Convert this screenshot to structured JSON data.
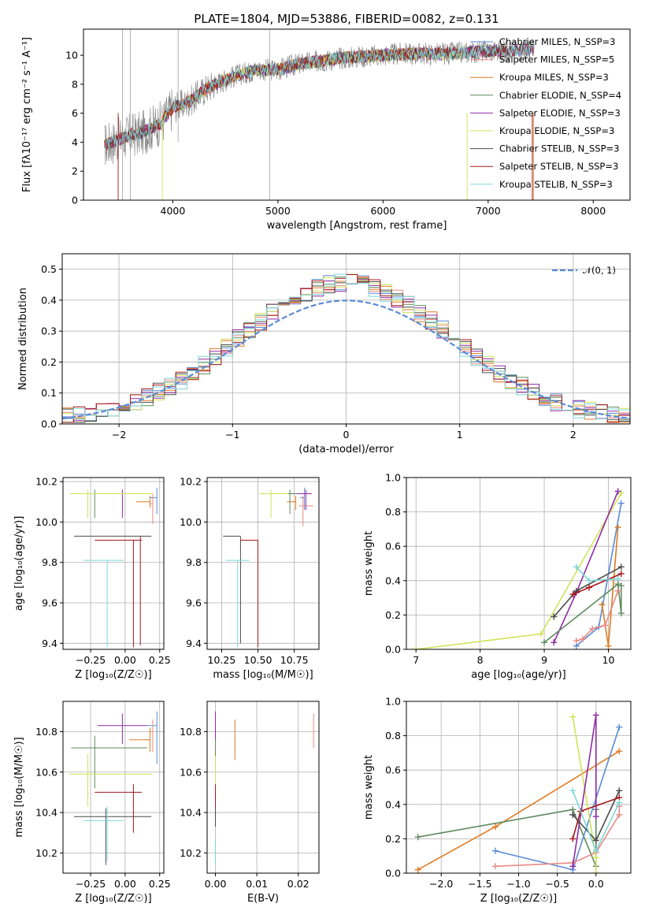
{
  "title": "PLATE=1804, MJD=53886, FIBERID=0082, z=0.131",
  "colors": {
    "chabrier_miles": "#5b8bd6",
    "salpeter_miles": "#e98a84",
    "kroupa_miles": "#e07b22",
    "chabrier_elodie": "#5f8a5f",
    "salpeter_elodie": "#8f2aa5",
    "kroupa_elodie": "#d1e35a",
    "chabrier_stelib": "#4b4b4b",
    "salpeter_stelib": "#a5181b",
    "kroupa_stelib": "#7fd6d8",
    "gaussian": "#5b8bd6"
  },
  "chart_data": [
    {
      "id": "spectrum",
      "type": "line",
      "xlabel": "wavelength [Angstrom, rest frame]",
      "ylabel": "Flux [fλ10⁻¹⁷ erg cm⁻² s⁻¹ A⁻¹]",
      "xlim": [
        3150,
        8350
      ],
      "ylim": [
        0,
        11.8
      ],
      "xticks": [
        4000,
        5000,
        6000,
        7000,
        8000
      ],
      "yticks": [
        0,
        2,
        4,
        6,
        8,
        10
      ],
      "grid": false,
      "legend_position": "top-right",
      "legend": [
        "Chabrier MILES, N_SSP=3",
        "Salpeter MILES, N_SSP=5",
        "Kroupa MILES, N_SSP=3",
        "Chabrier ELODIE, N_SSP=4",
        "Salpeter ELODIE, N_SSP=3",
        "Kroupa ELODIE, N_SSP=3",
        "Chabrier STELIB, N_SSP=3",
        "Salpeter STELIB, N_SSP=3",
        "Kroupa STELIB, N_SSP=3"
      ],
      "data_continuum": {
        "x": [
          3350,
          3500,
          3600,
          3700,
          3800,
          3900,
          4000,
          4100,
          4200,
          4300,
          4400,
          4600,
          4800,
          5000,
          5200,
          5400,
          5600,
          5800,
          6000,
          6200,
          6400,
          6600,
          6800,
          7000,
          7200,
          7400,
          7600,
          7800,
          8000,
          8200
        ],
        "y": [
          3.8,
          4.2,
          4.5,
          4.6,
          5.0,
          5.4,
          6.4,
          6.6,
          7.0,
          7.6,
          8.0,
          8.6,
          9.0,
          9.0,
          9.4,
          9.6,
          9.8,
          9.9,
          10.0,
          10.1,
          10.1,
          10.1,
          10.2,
          10.3,
          10.3,
          10.4,
          10.3,
          10.3,
          10.3,
          10.3
        ]
      }
    },
    {
      "id": "residuals",
      "type": "histogram",
      "xlabel": "(data-model)/error",
      "ylabel": "Normed distribution",
      "xlim": [
        -2.5,
        2.5
      ],
      "ylim": [
        0,
        0.55
      ],
      "xticks": [
        -2,
        -1,
        0,
        1,
        2
      ],
      "yticks": [
        0.0,
        0.1,
        0.2,
        0.3,
        0.4,
        0.5
      ],
      "grid": true,
      "legend_position": "top-right",
      "legend": [
        "𝒩(0, 1)"
      ],
      "bin_width": 0.1,
      "bin_start": -2.5
    },
    {
      "id": "age_vs_Z",
      "type": "errorbar",
      "xlabel": "Z [log₁₀(Z/Z☉)]",
      "ylabel": "age  [log₁₀(age/yr)]",
      "xlim": [
        -0.45,
        0.28
      ],
      "ylim": [
        9.37,
        10.22
      ],
      "xticks": [
        -0.25,
        0.0,
        0.25
      ],
      "yticks": [
        9.4,
        9.6,
        9.8,
        10.0,
        10.2
      ],
      "grid": true,
      "points": [
        {
          "model": "chabrier_miles",
          "x": 0.23,
          "y": 10.12,
          "xerr": [
            0.05,
            0.0
          ],
          "yerr": [
            0.08,
            0.05
          ]
        },
        {
          "model": "salpeter_miles",
          "x": 0.2,
          "y": 10.09,
          "xerr": [
            0.02,
            0.0
          ],
          "yerr": [
            0.1,
            0.05
          ]
        },
        {
          "model": "kroupa_miles",
          "x": 0.18,
          "y": 10.1,
          "xerr": [
            0.1,
            0.0
          ],
          "yerr": [
            0.03,
            0.03
          ]
        },
        {
          "model": "chabrier_elodie",
          "x": -0.22,
          "y": 10.14,
          "xerr": [
            0.17,
            0.1
          ],
          "yerr": [
            0.12,
            0.02
          ]
        },
        {
          "model": "salpeter_elodie",
          "x": -0.02,
          "y": 10.14,
          "xerr": [
            0.18,
            0.18
          ],
          "yerr": [
            0.12,
            0.02
          ]
        },
        {
          "model": "kroupa_elodie",
          "x": -0.27,
          "y": 10.14,
          "xerr": [
            0.13,
            0.47
          ],
          "yerr": [
            0.12,
            0.02
          ]
        },
        {
          "model": "chabrier_stelib",
          "x": -0.14,
          "y": 9.93,
          "xerr": [
            0.23,
            0.33
          ],
          "yerr": [
            0.0,
            0.0
          ]
        },
        {
          "model": "salpeter_stelib",
          "x": 0.06,
          "y": 9.91,
          "xerr": [
            0.28,
            0.06
          ],
          "yerr": [
            0.53,
            0.0
          ]
        },
        {
          "model": "salpeter_stelib_v",
          "x": 0.11,
          "y": 9.93,
          "xerr": [
            0.0,
            0.0
          ],
          "yerr": [
            0.54,
            0.0
          ]
        },
        {
          "model": "kroupa_stelib",
          "x": -0.13,
          "y": 9.81,
          "xerr": [
            0.17,
            0.12
          ],
          "yerr": [
            0.43,
            0.0
          ]
        }
      ]
    },
    {
      "id": "age_vs_mass",
      "type": "errorbar",
      "xlabel": "mass [log₁₀(M/M☉)]",
      "ylabel": "",
      "xlim": [
        10.15,
        10.92
      ],
      "ylim": [
        9.37,
        10.22
      ],
      "xticks": [
        10.25,
        10.5,
        10.75
      ],
      "yticks": [
        9.4,
        9.6,
        9.8,
        10.0,
        10.2
      ],
      "grid": true,
      "points": [
        {
          "model": "chabrier_miles",
          "x": 10.82,
          "y": 10.12,
          "xerr": [
            0.03,
            0.0
          ],
          "yerr": [
            0.06,
            0.05
          ]
        },
        {
          "model": "salpeter_miles",
          "x": 10.81,
          "y": 10.08,
          "xerr": [
            0.03,
            0.07
          ],
          "yerr": [
            0.1,
            0.05
          ]
        },
        {
          "model": "kroupa_miles",
          "x": 10.76,
          "y": 10.1,
          "xerr": [
            0.06,
            0.0
          ],
          "yerr": [
            0.04,
            0.03
          ]
        },
        {
          "model": "chabrier_elodie",
          "x": 10.72,
          "y": 10.14,
          "xerr": [
            0.08,
            0.06
          ],
          "yerr": [
            0.1,
            0.02
          ]
        },
        {
          "model": "salpeter_elodie",
          "x": 10.83,
          "y": 10.14,
          "xerr": [
            0.06,
            0.04
          ],
          "yerr": [
            0.08,
            0.02
          ]
        },
        {
          "model": "kroupa_elodie",
          "x": 10.59,
          "y": 10.14,
          "xerr": [
            0.08,
            0.12
          ],
          "yerr": [
            0.12,
            0.02
          ]
        },
        {
          "model": "chabrier_stelib",
          "x": 10.38,
          "y": 9.93,
          "xerr": [
            0.12,
            0.0
          ],
          "yerr": [
            0.53,
            0.0
          ]
        },
        {
          "model": "salpeter_stelib",
          "x": 10.5,
          "y": 9.91,
          "xerr": [
            0.12,
            0.0
          ],
          "yerr": [
            0.53,
            0.0
          ]
        },
        {
          "model": "kroupa_stelib",
          "x": 10.36,
          "y": 9.81,
          "xerr": [
            0.08,
            0.08
          ],
          "yerr": [
            0.43,
            0.0
          ]
        }
      ]
    },
    {
      "id": "weight_vs_age",
      "type": "line",
      "xlabel": "age  [log₁₀(age/yr)]",
      "ylabel": "mass weight",
      "xlim": [
        6.85,
        10.35
      ],
      "ylim": [
        0,
        1
      ],
      "xticks": [
        7,
        8,
        9,
        10
      ],
      "yticks": [
        0.0,
        0.2,
        0.4,
        0.6,
        0.8,
        1.0
      ],
      "grid": true,
      "series": [
        {
          "model": "kroupa_elodie",
          "x": [
            7.0,
            8.95,
            10.2
          ],
          "y": [
            0.0,
            0.09,
            0.91
          ]
        },
        {
          "model": "salpeter_elodie",
          "x": [
            9.15,
            9.5,
            10.15
          ],
          "y": [
            0.04,
            0.33,
            0.92
          ]
        },
        {
          "model": "chabrier_miles",
          "x": [
            9.5,
            9.85,
            10.2
          ],
          "y": [
            0.02,
            0.13,
            0.85
          ]
        },
        {
          "model": "kroupa_miles",
          "x": [
            9.9,
            10.0,
            10.15
          ],
          "y": [
            0.26,
            0.02,
            0.71
          ]
        },
        {
          "model": "chabrier_stelib",
          "x": [
            9.15,
            9.5,
            10.2
          ],
          "y": [
            0.19,
            0.34,
            0.48
          ]
        },
        {
          "model": "salpeter_stelib",
          "x": [
            9.45,
            9.7,
            10.2
          ],
          "y": [
            0.32,
            0.36,
            0.44
          ]
        },
        {
          "model": "kroupa_stelib",
          "x": [
            9.5,
            9.7,
            10.15
          ],
          "y": [
            0.48,
            0.4,
            0.41
          ]
        },
        {
          "model": "chabrier_elodie",
          "x": [
            9.0,
            10.15,
            10.2,
            10.2
          ],
          "y": [
            0.04,
            0.38,
            0.21,
            0.37
          ]
        },
        {
          "model": "salpeter_miles",
          "x": [
            9.5,
            9.6,
            9.75,
            9.95,
            10.15
          ],
          "y": [
            0.05,
            0.06,
            0.12,
            0.14,
            0.34
          ]
        }
      ]
    },
    {
      "id": "mass_vs_Z",
      "type": "errorbar",
      "xlabel": "Z [log₁₀(Z/Z☉)]",
      "ylabel": "mass [log₁₀(M/M☉)]",
      "xlim": [
        -0.45,
        0.28
      ],
      "ylim": [
        10.1,
        10.95
      ],
      "xticks": [
        -0.25,
        0.0,
        0.25
      ],
      "yticks": [
        10.2,
        10.4,
        10.6,
        10.8
      ],
      "grid": true,
      "points": [
        {
          "model": "chabrier_miles",
          "x": 0.23,
          "y": 10.83,
          "xerr": [
            0.07,
            0.0
          ],
          "yerr": [
            0.19,
            0.07
          ]
        },
        {
          "model": "salpeter_miles",
          "x": 0.2,
          "y": 10.8,
          "xerr": [
            0.02,
            0.0
          ],
          "yerr": [
            0.1,
            0.06
          ]
        },
        {
          "model": "kroupa_miles",
          "x": 0.18,
          "y": 10.76,
          "xerr": [
            0.15,
            0.0
          ],
          "yerr": [
            0.06,
            0.06
          ]
        },
        {
          "model": "chabrier_elodie",
          "x": -0.22,
          "y": 10.72,
          "xerr": [
            0.17,
            0.38
          ],
          "yerr": [
            0.2,
            0.06
          ]
        },
        {
          "model": "salpeter_elodie",
          "x": -0.02,
          "y": 10.83,
          "xerr": [
            0.18,
            0.18
          ],
          "yerr": [
            0.09,
            0.06
          ]
        },
        {
          "model": "kroupa_elodie",
          "x": -0.27,
          "y": 10.59,
          "xerr": [
            0.13,
            0.47
          ],
          "yerr": [
            0.16,
            0.1
          ]
        },
        {
          "model": "chabrier_stelib",
          "x": -0.14,
          "y": 10.38,
          "xerr": [
            0.23,
            0.33
          ],
          "yerr": [
            0.24,
            0.04
          ]
        },
        {
          "model": "salpeter_stelib",
          "x": 0.06,
          "y": 10.5,
          "xerr": [
            0.28,
            0.06
          ],
          "yerr": [
            0.2,
            0.04
          ]
        },
        {
          "model": "kroupa_stelib",
          "x": -0.13,
          "y": 10.36,
          "xerr": [
            0.17,
            0.12
          ],
          "yerr": [
            0.2,
            0.07
          ]
        }
      ]
    },
    {
      "id": "mass_vs_ebv",
      "type": "errorbar",
      "xlabel": "E(B-V)",
      "ylabel": "",
      "xlim": [
        -0.002,
        0.025
      ],
      "ylim": [
        10.1,
        10.95
      ],
      "xticks": [
        0.0,
        0.01,
        0.02
      ],
      "yticks": [
        10.2,
        10.4,
        10.6,
        10.8
      ],
      "grid": true,
      "points": [
        {
          "model": "salpeter_miles",
          "x": 0.0237,
          "y": 10.81,
          "xerr": [
            0,
            0
          ],
          "yerr": [
            0.09,
            0.08
          ]
        },
        {
          "model": "kroupa_miles",
          "x": 0.0047,
          "y": 10.76,
          "xerr": [
            0,
            0
          ],
          "yerr": [
            0.1,
            0.1
          ]
        },
        {
          "model": "salpeter_elodie",
          "x": 0.0,
          "y": 10.82,
          "xerr": [
            0,
            0
          ],
          "yerr": [
            0.08,
            0.08
          ]
        },
        {
          "model": "kroupa_elodie",
          "x": 0.0,
          "y": 10.6,
          "xerr": [
            0,
            0
          ],
          "yerr": [
            0.15,
            0.15
          ]
        },
        {
          "model": "chabrier_elodie",
          "x": 0.0,
          "y": 10.72,
          "xerr": [
            0,
            0
          ],
          "yerr": [
            0.04,
            0.04
          ]
        },
        {
          "model": "salpeter_stelib",
          "x": 0.0,
          "y": 10.48,
          "xerr": [
            0,
            0
          ],
          "yerr": [
            0.06,
            0.06
          ]
        },
        {
          "model": "chabrier_stelib",
          "x": 0.0,
          "y": 10.38,
          "xerr": [
            0,
            0
          ],
          "yerr": [
            0.05,
            0.05
          ]
        },
        {
          "model": "kroupa_stelib",
          "x": 0.0,
          "y": 10.2,
          "xerr": [
            0,
            0
          ],
          "yerr": [
            0.07,
            0.07
          ]
        }
      ]
    },
    {
      "id": "weight_vs_Z",
      "type": "line",
      "xlabel": "Z [log₁₀(Z/Z☉)]",
      "ylabel": "mass weight",
      "xlim": [
        -2.45,
        0.45
      ],
      "ylim": [
        0,
        1
      ],
      "xticks": [
        -2.0,
        -1.5,
        -1.0,
        -0.5,
        0.0
      ],
      "yticks": [
        0.0,
        0.2,
        0.4,
        0.6,
        0.8,
        1.0
      ],
      "grid": true,
      "series": [
        {
          "model": "kroupa_miles",
          "x": [
            -2.3,
            -1.3,
            0.3
          ],
          "y": [
            0.02,
            0.27,
            0.71
          ]
        },
        {
          "model": "chabrier_elodie",
          "x": [
            -2.3,
            -0.3,
            0.0,
            0.0
          ],
          "y": [
            0.21,
            0.37,
            0.04,
            0.37
          ]
        },
        {
          "model": "chabrier_miles",
          "x": [
            -1.3,
            -0.3,
            0.3
          ],
          "y": [
            0.13,
            0.02,
            0.85
          ]
        },
        {
          "model": "salpeter_miles",
          "x": [
            -1.3,
            -0.3,
            0.0,
            0.3,
            0.3
          ],
          "y": [
            0.04,
            0.06,
            0.12,
            0.34,
            0.39
          ]
        },
        {
          "model": "kroupa_elodie",
          "x": [
            -0.3,
            0.0,
            0.0
          ],
          "y": [
            0.91,
            0.09,
            0.0
          ]
        },
        {
          "model": "salpeter_elodie",
          "x": [
            -0.3,
            0.0,
            0.0
          ],
          "y": [
            0.04,
            0.92,
            0.33
          ]
        },
        {
          "model": "chabrier_stelib",
          "x": [
            -0.3,
            0.0,
            0.3
          ],
          "y": [
            0.34,
            0.19,
            0.48
          ]
        },
        {
          "model": "salpeter_stelib",
          "x": [
            -0.3,
            -0.2,
            0.3
          ],
          "y": [
            0.2,
            0.36,
            0.44
          ]
        },
        {
          "model": "kroupa_stelib",
          "x": [
            -0.3,
            0.0,
            0.3
          ],
          "y": [
            0.48,
            0.13,
            0.41
          ]
        }
      ]
    }
  ]
}
